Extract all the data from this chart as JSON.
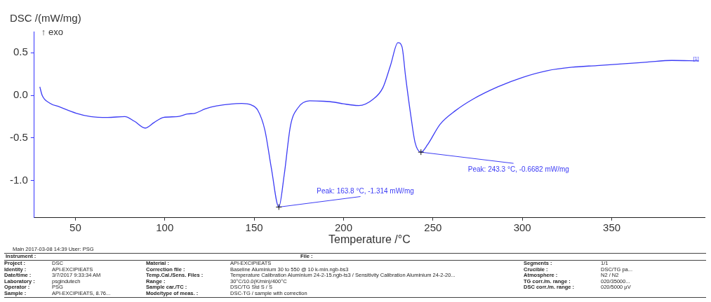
{
  "chart_data": {
    "type": "line",
    "xlabel": "Temperature /°C",
    "ylabel": "DSC /(mW/mg)",
    "xlim": [
      27,
      402
    ],
    "ylim": [
      -1.44,
      0.75
    ],
    "xticks": [
      50,
      100,
      150,
      200,
      250,
      300,
      350
    ],
    "yticks": [
      {
        "value": 0.5,
        "label": "0.5"
      },
      {
        "value": 0,
        "label": "0.0"
      },
      {
        "value": -0.5,
        "label": "-0.5"
      },
      {
        "value": -1,
        "label": "-1.0"
      }
    ],
    "grid": false,
    "legend": false,
    "marker": "none",
    "line_style": "solid",
    "series": [
      {
        "color": "#3c3cf5",
        "x": [
          30.1,
          31.4,
          35.5,
          41,
          50.4,
          58.5,
          68,
          77.6,
          83,
          89,
          94,
          99.2,
          107.3,
          112.7,
          117,
          122.6,
          129,
          143,
          148,
          152,
          156,
          159.6,
          163.8,
          166.8,
          170.3,
          174.4,
          181,
          188.9,
          194.6,
          199.9,
          208.5,
          216.6,
          222,
          226.3,
          230.4,
          232.7,
          234.7,
          237.6,
          240,
          243.3,
          247,
          254,
          262.6,
          272.4,
          286.3,
          300,
          314,
          327.8,
          341.7,
          355.9,
          369.8,
          383.6,
          398.7
        ],
        "values": [
          0.1,
          0.0,
          -0.09,
          -0.135,
          -0.21,
          -0.25,
          -0.26,
          -0.25,
          -0.305,
          -0.385,
          -0.32,
          -0.26,
          -0.25,
          -0.22,
          -0.21,
          -0.16,
          -0.125,
          -0.095,
          -0.11,
          -0.175,
          -0.41,
          -0.855,
          -1.314,
          -0.935,
          -0.36,
          -0.15,
          -0.065,
          -0.07,
          -0.08,
          -0.1,
          -0.12,
          -0.045,
          0.09,
          0.355,
          0.62,
          0.57,
          0.22,
          -0.235,
          -0.555,
          -0.6682,
          -0.58,
          -0.34,
          -0.18,
          -0.045,
          0.1,
          0.21,
          0.29,
          0.33,
          0.35,
          0.37,
          0.39,
          0.41,
          0.405
        ]
      }
    ],
    "annotations": [
      {
        "text": "Peak: 163.8 °C, -1.314 mW/mg",
        "x": 163.8,
        "y": -1.314
      },
      {
        "text": "Peak: 243.3 °C, -0.6682 mW/mg",
        "x": 243.3,
        "y": -0.6682
      },
      "↑ exo",
      {
        "text": "[1]",
        "x": 398.7,
        "y": 0.405
      },
      "Main   2017-03-08 14:39   User: PSG",
      "Instrument :",
      "File :",
      "Project :",
      "DSC",
      "Material :",
      "API-EXCIPIEATS",
      "Segments :",
      "1/1",
      "Identity :",
      "API-EXCIPIEATS",
      "Correction file :",
      "Baseline Aluminium 30 to 550 @ 10 k-min.ngb-bs3",
      "Crucible :",
      "DSC/TG pa...",
      "Date/time :",
      "3/7/2017 9:33:34 AM",
      "Temp.Cal./Sens. Files :",
      "Temperature Calibration Aluminium 24-2-15.ngb-ts3 / Sensitivity Calibration Aluminium 24-2-20...",
      "Atmosphere :",
      "N2 / N2",
      "Laboratory :",
      "psgindutech",
      "Range :",
      "30°C/10.0(K/min)/400°C",
      "TG corr./m. range :",
      "020/35000...",
      "Operator :",
      "PSG",
      "Sample car./TC :",
      "DSC/TG Std S / S",
      "DSC corr./m. range :",
      "020/5000 µV",
      "Sample :",
      "API-EXCIPIEATS, 8.76...",
      "Mode/type of meas. :",
      "DSC-TG / sample with correction"
    ]
  }
}
